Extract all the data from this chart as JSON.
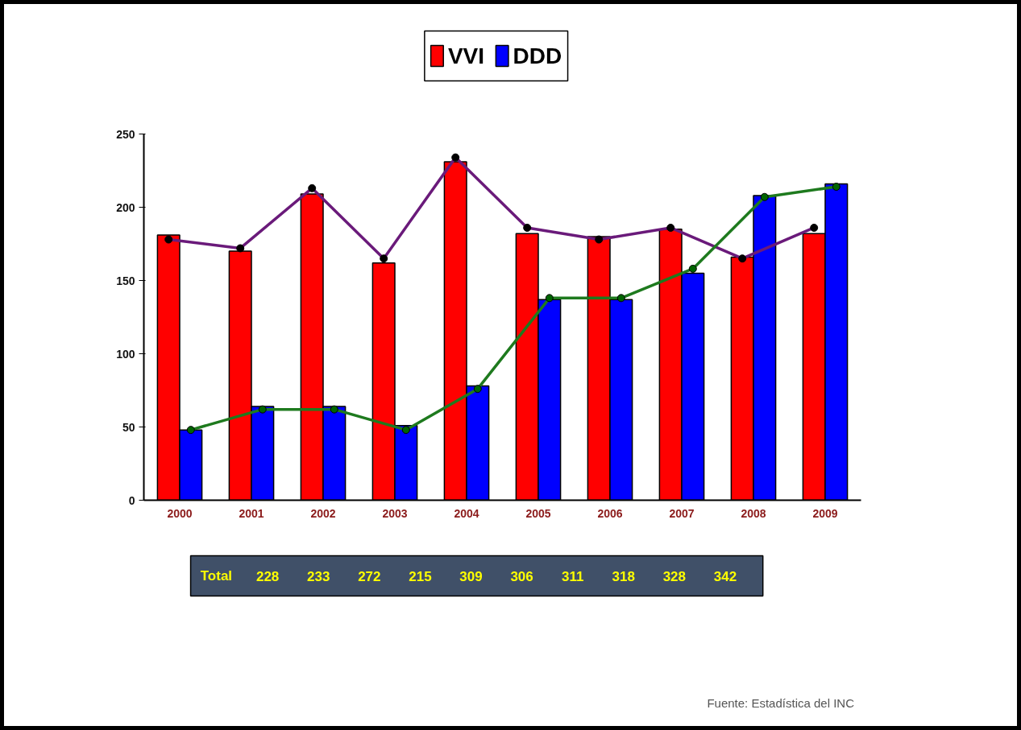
{
  "chart_data": {
    "type": "bar",
    "categories": [
      "2000",
      "2001",
      "2002",
      "2003",
      "2004",
      "2005",
      "2006",
      "2007",
      "2008",
      "2009"
    ],
    "series": [
      {
        "name": "VVI",
        "color": "#ff0000",
        "values": [
          181,
          170,
          209,
          162,
          231,
          182,
          180,
          185,
          166,
          182
        ]
      },
      {
        "name": "DDD",
        "color": "#0000ff",
        "values": [
          48,
          64,
          64,
          51,
          78,
          137,
          137,
          155,
          208,
          216
        ]
      },
      {
        "type": "line",
        "color": "#6a1a7a",
        "colors": [
          "#000000",
          "#000000",
          "#000000",
          "#000000",
          "#000000",
          "#000000",
          "#000000",
          "#000000",
          "#000000",
          "#000000"
        ],
        "values": [
          178,
          172,
          213,
          165,
          234,
          186,
          178,
          186,
          165,
          186
        ]
      },
      {
        "type": "line",
        "color": "#1e7a1e",
        "colors": [
          "#006400",
          "#006400",
          "#006400",
          "#006400",
          "#006400",
          "#006400",
          "#006400",
          "#006400",
          "#006400",
          "#006400"
        ],
        "values": [
          48,
          62,
          62,
          48,
          76,
          138,
          138,
          158,
          207,
          214
        ]
      }
    ],
    "ylim": [
      0,
      250
    ],
    "yticks": [
      0,
      50,
      100,
      150,
      200,
      250
    ],
    "grid": false,
    "legend": "top",
    "marker": "circle",
    "annotations": [
      "Total",
      "228",
      "233",
      "272",
      "215",
      "309",
      "306",
      "311",
      "318",
      "328",
      "342",
      "Fuente: Estadística del INC"
    ]
  }
}
